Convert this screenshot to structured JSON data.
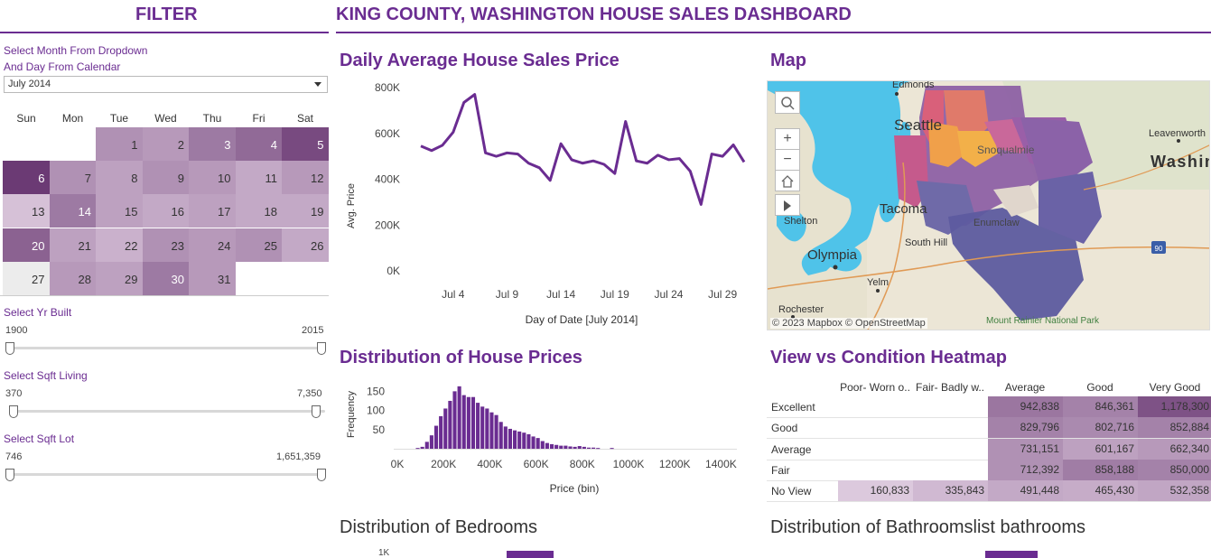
{
  "header": {
    "filter_title": "FILTER",
    "dashboard_title": "KING COUNTY, WASHINGTON HOUSE SALES DASHBOARD"
  },
  "filter": {
    "instruction_line1": "Select Month From Dropdown",
    "instruction_line2": "And Day From Calendar",
    "month_value": "July 2014",
    "weekdays": [
      "Sun",
      "Mon",
      "Tue",
      "Wed",
      "Thu",
      "Fri",
      "Sat"
    ],
    "calendar_days": [
      {
        "day": "1",
        "shade": 0.45
      },
      {
        "day": "2",
        "shade": 0.4
      },
      {
        "day": "3",
        "shade": 0.6
      },
      {
        "day": "4",
        "shade": 0.7
      },
      {
        "day": "5",
        "shade": 0.9
      },
      {
        "day": "6",
        "shade": 1.0
      },
      {
        "day": "7",
        "shade": 0.45
      },
      {
        "day": "8",
        "shade": 0.35
      },
      {
        "day": "9",
        "shade": 0.45
      },
      {
        "day": "10",
        "shade": 0.4
      },
      {
        "day": "11",
        "shade": 0.3
      },
      {
        "day": "12",
        "shade": 0.4
      },
      {
        "day": "13",
        "shade": 0.15
      },
      {
        "day": "14",
        "shade": 0.6
      },
      {
        "day": "15",
        "shade": 0.35
      },
      {
        "day": "16",
        "shade": 0.3
      },
      {
        "day": "17",
        "shade": 0.35
      },
      {
        "day": "18",
        "shade": 0.3
      },
      {
        "day": "19",
        "shade": 0.3
      },
      {
        "day": "20",
        "shade": 0.75
      },
      {
        "day": "21",
        "shade": 0.35
      },
      {
        "day": "22",
        "shade": 0.25
      },
      {
        "day": "23",
        "shade": 0.45
      },
      {
        "day": "24",
        "shade": 0.4
      },
      {
        "day": "25",
        "shade": 0.45
      },
      {
        "day": "26",
        "shade": 0.3
      },
      {
        "day": "27",
        "shade": 0.0
      },
      {
        "day": "28",
        "shade": 0.4
      },
      {
        "day": "29",
        "shade": 0.35
      },
      {
        "day": "30",
        "shade": 0.6
      },
      {
        "day": "31",
        "shade": 0.4
      }
    ],
    "yr_built": {
      "label": "Select Yr Built",
      "min": "1900",
      "max": "2015"
    },
    "sqft_living": {
      "label": "Select Sqft Living",
      "min": "370",
      "max": "7,350"
    },
    "sqft_lot": {
      "label": "Select Sqft Lot",
      "min": "746",
      "max": "1,651,359"
    }
  },
  "daily_price": {
    "title": "Daily Average House Sales Price",
    "chart_data": {
      "type": "line",
      "title": "Daily Average House Sales Price",
      "xlabel": "Day of Date [July 2014]",
      "ylabel": "Avg. Price",
      "x": [
        1,
        2,
        3,
        4,
        5,
        6,
        7,
        8,
        9,
        10,
        11,
        12,
        13,
        14,
        15,
        16,
        17,
        18,
        19,
        20,
        21,
        22,
        23,
        24,
        25,
        26,
        27,
        28,
        29,
        30,
        31
      ],
      "values": [
        545000,
        525000,
        548000,
        605000,
        735000,
        770000,
        515000,
        500000,
        515000,
        510000,
        470000,
        450000,
        395000,
        555000,
        485000,
        470000,
        480000,
        465000,
        425000,
        652000,
        480000,
        470000,
        505000,
        485000,
        490000,
        435000,
        290000,
        510000,
        500000,
        550000,
        475000
      ],
      "ylim": [
        0,
        800000
      ],
      "y_ticks": [
        "0K",
        "200K",
        "400K",
        "600K",
        "800K"
      ],
      "x_ticks": [
        {
          "day": 4,
          "label": "Jul 4"
        },
        {
          "day": 9,
          "label": "Jul 9"
        },
        {
          "day": 14,
          "label": "Jul 14"
        },
        {
          "day": 19,
          "label": "Jul 19"
        },
        {
          "day": 24,
          "label": "Jul 24"
        },
        {
          "day": 29,
          "label": "Jul 29"
        }
      ],
      "color": "#6a2c91"
    }
  },
  "map": {
    "title": "Map",
    "places": [
      "Edmonds",
      "Seattle",
      "Snoqualmie",
      "Leavenworth",
      "Washington",
      "Tacoma",
      "Enumclaw",
      "Shelton",
      "South Hill",
      "Olympia",
      "Yelm",
      "Rochester",
      "Mount Rainier National Park",
      "90"
    ],
    "attribution": "© 2023 Mapbox  © OpenStreetMap",
    "water_color": "#4fc3e9",
    "zoom_in_icon": "+",
    "zoom_out_icon": "−"
  },
  "histogram": {
    "title": "Distribution of House Prices",
    "chart_data": {
      "type": "bar",
      "title": "Distribution of House Prices",
      "xlabel": "Price (bin)",
      "ylabel": "Frequency",
      "bin_width": 20000,
      "bin_start": 80000,
      "values": [
        2,
        5,
        18,
        35,
        60,
        85,
        105,
        125,
        150,
        163,
        140,
        135,
        135,
        120,
        110,
        105,
        95,
        88,
        70,
        58,
        52,
        48,
        45,
        42,
        38,
        32,
        28,
        20,
        15,
        12,
        10,
        8,
        8,
        6,
        5,
        7,
        5,
        3,
        3,
        2,
        0,
        0,
        2
      ],
      "ylim": [
        0,
        165
      ],
      "y_ticks": [
        "50",
        "100",
        "150"
      ],
      "x_ticks": [
        "0K",
        "200K",
        "400K",
        "600K",
        "800K",
        "1000K",
        "1200K",
        "1400K"
      ],
      "color": "#6a2c91"
    }
  },
  "heatmap": {
    "title": "View vs Condition Heatmap",
    "columns": [
      "Poor- Worn o..",
      "Fair- Badly w..",
      "Average",
      "Good",
      "Very Good"
    ],
    "rows": [
      {
        "label": "Excellent",
        "cells": [
          "",
          "",
          "942,838",
          "846,361",
          "1,178,300"
        ],
        "shades": [
          0,
          0,
          0.62,
          0.55,
          0.85
        ]
      },
      {
        "label": "Good",
        "cells": [
          "",
          "",
          "829,796",
          "802,716",
          "852,884"
        ],
        "shades": [
          0,
          0,
          0.55,
          0.5,
          0.55
        ]
      },
      {
        "label": "Average",
        "cells": [
          "",
          "",
          "731,151",
          "601,167",
          "662,340"
        ],
        "shades": [
          0,
          0,
          0.45,
          0.35,
          0.4
        ]
      },
      {
        "label": "Fair",
        "cells": [
          "",
          "",
          "712,392",
          "858,188",
          "850,000"
        ],
        "shades": [
          0,
          0,
          0.45,
          0.58,
          0.55
        ]
      },
      {
        "label": "No View",
        "cells": [
          "160,833",
          "335,843",
          "491,448",
          "465,430",
          "532,358"
        ],
        "shades": [
          0.1,
          0.2,
          0.3,
          0.28,
          0.32
        ]
      }
    ]
  },
  "bedrooms": {
    "title": "Distribution of Bedrooms",
    "tick": "1K"
  },
  "bathrooms": {
    "title": "Distribution of Bathroomslist bathrooms"
  }
}
